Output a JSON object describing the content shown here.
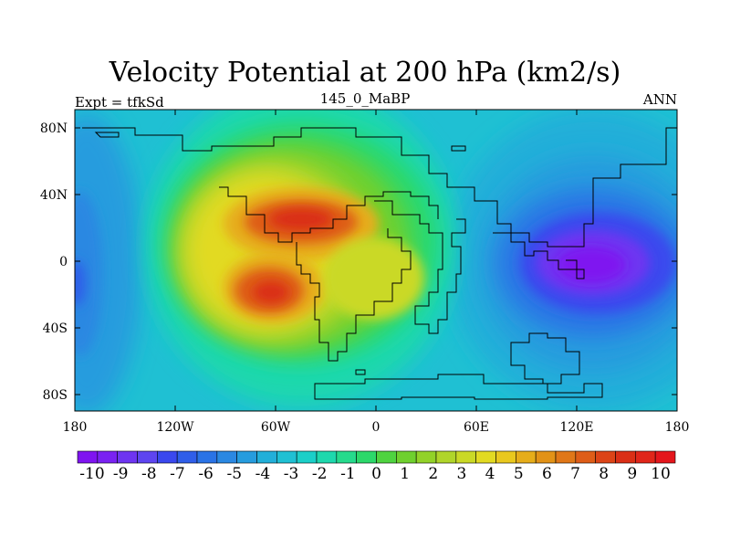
{
  "title": "Velocity Potential at 200 hPa (km2/s)",
  "left_label": "Expt = tfkSd",
  "center_label": "145_0_MaBP",
  "right_label": "ANN",
  "map": {
    "x_ticks": [
      "180",
      "120W",
      "60W",
      "0",
      "60E",
      "120E",
      "180"
    ],
    "y_ticks": [
      "80N",
      "40N",
      "0",
      "40S",
      "80S"
    ]
  },
  "colorbar": {
    "labels": [
      "-10",
      "-9",
      "-8",
      "-7",
      "-6",
      "-5",
      "-4",
      "-3",
      "-2",
      "-1",
      "0",
      "1",
      "2",
      "3",
      "4",
      "5",
      "6",
      "7",
      "8",
      "9",
      "10"
    ],
    "colors": [
      "#7f14f0",
      "#7a22f2",
      "#6e35f1",
      "#5e45f0",
      "#3a48ee",
      "#2f5ee9",
      "#2a73e6",
      "#2b88e2",
      "#269cde",
      "#22afd9",
      "#1fc0d3",
      "#1bcfc8",
      "#1ed8ad",
      "#26da8c",
      "#2cd86a",
      "#4fd340",
      "#6fd02e",
      "#92d228",
      "#b0d52a",
      "#cad926",
      "#e2da22",
      "#e9c81e",
      "#e6ad1a",
      "#e29217",
      "#e07718",
      "#de5d18",
      "#dc4417",
      "#da2f16",
      "#e0261a",
      "#e4161c"
    ]
  }
}
